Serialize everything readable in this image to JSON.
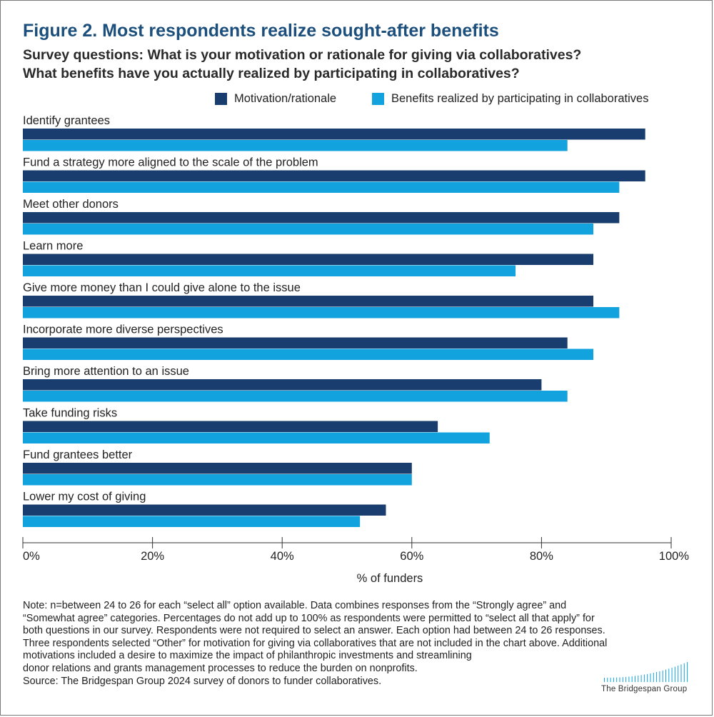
{
  "colors": {
    "motivation": "#193d6e",
    "benefits": "#12a3de",
    "axis": "#333333",
    "title": "#1c4f7c"
  },
  "title": "Figure 2. Most respondents realize sought-after benefits",
  "subtitle_line1": "Survey questions: What is your motivation or rationale for giving via collaboratives?",
  "subtitle_line2": "What benefits have you actually realized by participating in collaboratives?",
  "legend": {
    "motivation": "Motivation/rationale",
    "benefits": "Benefits realized by participating in collaboratives"
  },
  "chart_data": {
    "type": "bar",
    "orientation": "horizontal",
    "categories": [
      "Identify grantees",
      "Fund a strategy more aligned to the scale of the problem",
      "Meet other donors",
      "Learn more",
      "Give more money than I could give alone to the issue",
      "Incorporate more diverse perspectives",
      "Bring more attention to an issue",
      "Take funding risks",
      "Fund grantees better",
      "Lower my cost of giving"
    ],
    "series": [
      {
        "name": "Motivation/rationale",
        "values": [
          96,
          96,
          92,
          88,
          88,
          84,
          80,
          64,
          60,
          56
        ]
      },
      {
        "name": "Benefits realized by participating in collaboratives",
        "values": [
          84,
          92,
          88,
          76,
          92,
          88,
          84,
          72,
          60,
          52
        ]
      }
    ],
    "xlim": [
      0,
      100
    ],
    "ticks": [
      0,
      20,
      40,
      60,
      80,
      100
    ],
    "tick_labels": [
      "0%",
      "20%",
      "40%",
      "60%",
      "80%",
      "100%"
    ],
    "xlabel": "% of funders",
    "ylabel": "",
    "legend_position": "top-right",
    "grid": false
  },
  "note": {
    "lines": [
      "Note: n=between 24 to 26 for each “select all” option available. Data combines responses from the “Strongly agree” and",
      "“Somewhat agree” categories. Percentages do not add up to 100% as respondents were permitted to “select all that apply” for",
      "both questions in our survey. Respondents were not required to select an answer. Each option had between 24 to 26 responses.",
      "Three respondents selected “Other” for motivation for giving via collaboratives that are not included in the chart above. Additional",
      "motivations included a desire to maximize the impact of philanthropic investments and streamlining",
      "donor relations and grants management processes to reduce the burden on nonprofits."
    ],
    "source": "Source: The Bridgespan Group 2024 survey of donors to funder collaboratives."
  },
  "logo": {
    "text": "The Bridgespan Group",
    "icon": "bridgespan-bars-logo"
  }
}
